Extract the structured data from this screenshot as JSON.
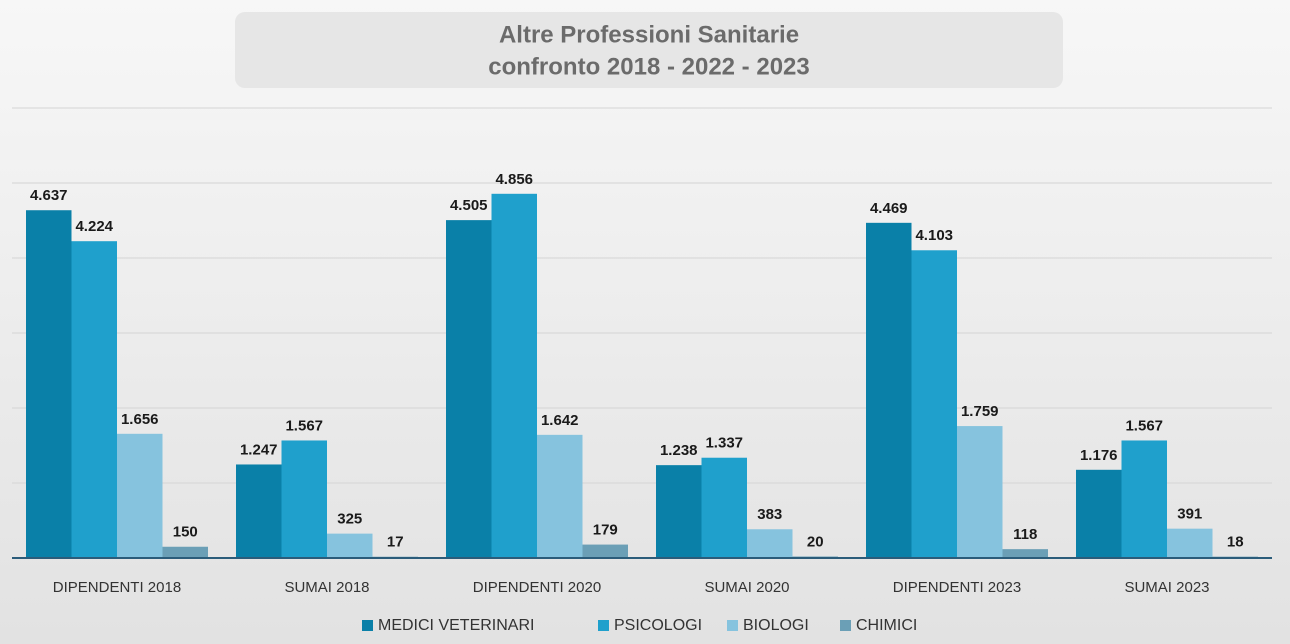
{
  "chart_data": {
    "type": "bar",
    "title_lines": [
      "Altre Professioni Sanitarie",
      "confronto 2018 - 2022 - 2023"
    ],
    "categories": [
      "DIPENDENTI 2018",
      "SUMAI 2018",
      "DIPENDENTI 2020",
      "SUMAI 2020",
      "DIPENDENTI 2023",
      "SUMAI 2023"
    ],
    "series": [
      {
        "name": "MEDICI VETERINARI",
        "color": "#0a80a8",
        "values": [
          4637,
          1247,
          4505,
          1238,
          4469,
          1176
        ],
        "value_labels": [
          "4.637",
          "1.247",
          "4.505",
          "1.238",
          "4.469",
          "1.176"
        ]
      },
      {
        "name": "PSICOLOGI",
        "color": "#1fa0cc",
        "values": [
          4224,
          1567,
          4856,
          1337,
          4103,
          1567
        ],
        "value_labels": [
          "4.224",
          "1.567",
          "4.856",
          "1.337",
          "4.103",
          "1.567"
        ]
      },
      {
        "name": "BIOLOGI",
        "color": "#86c3de",
        "values": [
          1656,
          325,
          1642,
          383,
          1759,
          391
        ],
        "value_labels": [
          "1.656",
          "325",
          "1.642",
          "383",
          "1.759",
          "391"
        ]
      },
      {
        "name": "CHIMICI",
        "color": "#6b9fb6",
        "values": [
          150,
          17,
          179,
          20,
          118,
          18
        ],
        "value_labels": [
          "150",
          "17",
          "179",
          "20",
          "118",
          "18"
        ]
      }
    ],
    "ylim": [
      0,
      6000
    ],
    "yticks": [
      0,
      1000,
      2000,
      3000,
      4000,
      5000,
      6000
    ],
    "grid": true
  }
}
